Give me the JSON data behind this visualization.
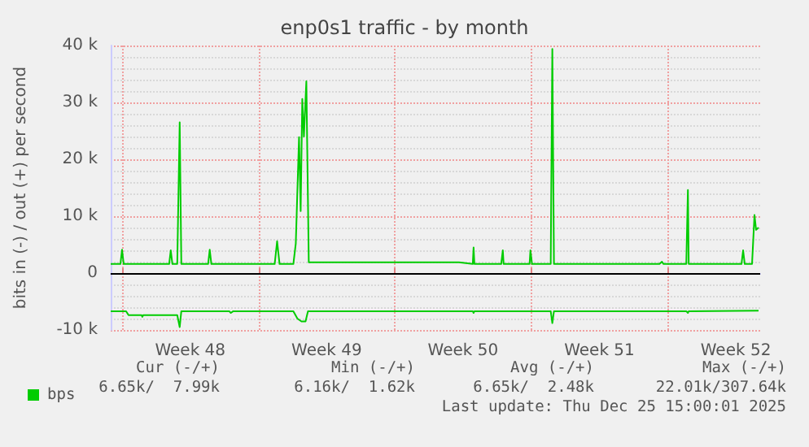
{
  "chart_data": {
    "type": "line",
    "title": "enp0s1 traffic - by month",
    "ylabel": "bits in (-) / out (+) per second",
    "xlim": [
      "2025-11-22T10:00",
      "2025-12-25T18:00"
    ],
    "xticks": [
      {
        "value": "2025-11-23T00:00",
        "label": null
      },
      {
        "value": "2025-11-26T12:00",
        "label": "Week 48"
      },
      {
        "value": "2025-11-30T00:00",
        "label": null
      },
      {
        "value": "2025-12-03T12:00",
        "label": "Week 49"
      },
      {
        "value": "2025-12-07T00:00",
        "label": null
      },
      {
        "value": "2025-12-10T12:00",
        "label": "Week 50"
      },
      {
        "value": "2025-12-14T00:00",
        "label": null
      },
      {
        "value": "2025-12-17T12:00",
        "label": "Week 51"
      },
      {
        "value": "2025-12-21T00:00",
        "label": null
      },
      {
        "value": "2025-12-24T12:00",
        "label": "Week 52"
      }
    ],
    "ylim": [
      -10,
      40
    ],
    "yticks": [
      {
        "value": -10,
        "label": "-10 k"
      },
      0,
      {
        "value": 10,
        "label": "10 k"
      },
      {
        "value": 20,
        "label": "20 k"
      },
      {
        "value": 30,
        "label": "30 k"
      },
      {
        "value": 40,
        "label": "40 k"
      }
    ],
    "grid": true,
    "legend": "bottom left",
    "marker": "none",
    "line_style": "solid",
    "ref_lines": [
      {
        "axis": "y",
        "value": 0,
        "label": null,
        "color": "#000000"
      }
    ],
    "series": [
      {
        "name": "bps",
        "color": "#00cc00",
        "x": [
          "2025-11-22T10:00",
          "2025-11-22T22:00",
          "2025-11-23T00:00",
          "2025-11-23T02:00",
          "2025-11-25T10:00",
          "2025-11-25T12:00",
          "2025-11-25T14:00",
          "2025-11-25T20:00",
          "2025-11-25T23:00",
          "2025-11-26T01:00",
          "2025-11-27T10:00",
          "2025-11-27T12:00",
          "2025-11-27T14:00",
          "2025-11-30T20:00",
          "2025-11-30T23:00",
          "2025-12-01T02:00",
          "2025-12-01T19:00",
          "2025-12-01T22:00",
          "2025-12-02T02:00",
          "2025-12-02T04:00",
          "2025-12-02T06:00",
          "2025-12-02T08:00",
          "2025-12-02T11:00",
          "2025-12-02T14:00",
          "2025-12-10T07:00",
          "2025-12-11T00:00",
          "2025-12-11T01:00",
          "2025-12-11T02:00",
          "2025-12-12T11:00",
          "2025-12-12T13:00",
          "2025-12-12T14:00",
          "2025-12-13T22:00",
          "2025-12-13T23:00",
          "2025-12-14T01:00",
          "2025-12-15T00:00",
          "2025-12-15T02:00",
          "2025-12-15T04:00",
          "2025-12-20T14:00",
          "2025-12-20T17:00",
          "2025-12-20T19:00",
          "2025-12-21T23:00",
          "2025-12-22T01:00",
          "2025-12-22T02:00",
          "2025-12-24T19:00",
          "2025-12-24T21:00",
          "2025-12-24T23:00",
          "2025-12-25T08:00",
          "2025-12-25T11:00",
          "2025-12-25T13:00",
          "2025-12-25T16:00"
        ],
        "values": [
          1.6,
          1.6,
          4.1,
          1.6,
          1.6,
          4.0,
          1.6,
          1.6,
          26.5,
          1.6,
          1.6,
          4.1,
          1.6,
          1.6,
          5.6,
          1.6,
          1.6,
          5.2,
          23.9,
          10.9,
          30.6,
          24.0,
          33.7,
          1.9,
          1.9,
          1.6,
          4.5,
          1.6,
          1.6,
          4.0,
          1.6,
          1.6,
          4.0,
          1.6,
          1.6,
          39.4,
          1.6,
          1.6,
          2.0,
          1.6,
          1.6,
          14.6,
          1.6,
          1.6,
          4.0,
          1.6,
          1.6,
          10.2,
          7.6,
          8.0
        ]
      },
      {
        "color": "#00cc00",
        "x": [
          "2025-11-22T10:00",
          "2025-11-23T05:00",
          "2025-11-23T08:00",
          "2025-11-24T00:00",
          "2025-11-24T01:00",
          "2025-11-24T02:00",
          "2025-11-25T20:00",
          "2025-11-25T23:00",
          "2025-11-26T01:00",
          "2025-11-28T12:00",
          "2025-11-28T14:00",
          "2025-11-28T17:00",
          "2025-12-01T19:00",
          "2025-12-02T00:00",
          "2025-12-02T05:00",
          "2025-12-02T10:00",
          "2025-12-02T13:00",
          "2025-12-11T00:00",
          "2025-12-11T01:00",
          "2025-12-11T02:00",
          "2025-12-15T00:00",
          "2025-12-15T02:00",
          "2025-12-15T04:00",
          "2025-12-21T23:00",
          "2025-12-22T01:00",
          "2025-12-22T02:00",
          "2025-12-25T16:00"
        ],
        "values": [
          -6.7,
          -6.7,
          -7.4,
          -7.4,
          -7.7,
          -7.4,
          -7.4,
          -9.5,
          -6.7,
          -6.7,
          -7.0,
          -6.7,
          -6.7,
          -8.0,
          -8.5,
          -8.5,
          -6.7,
          -6.7,
          -7.0,
          -6.7,
          -6.7,
          -8.8,
          -6.7,
          -6.7,
          -7.0,
          -6.7,
          -6.6
        ]
      }
    ],
    "annotations": [
      "Cur (-/+)",
      "Min (-/+)",
      "Avg (-/+)",
      "Max (-/+)",
      "6.65k/  7.99k",
      "6.16k/  1.62k",
      "6.65k/  2.48k",
      "22.01k/307.64k",
      "Last update: Thu Dec 25 15:00:01 2025"
    ]
  }
}
